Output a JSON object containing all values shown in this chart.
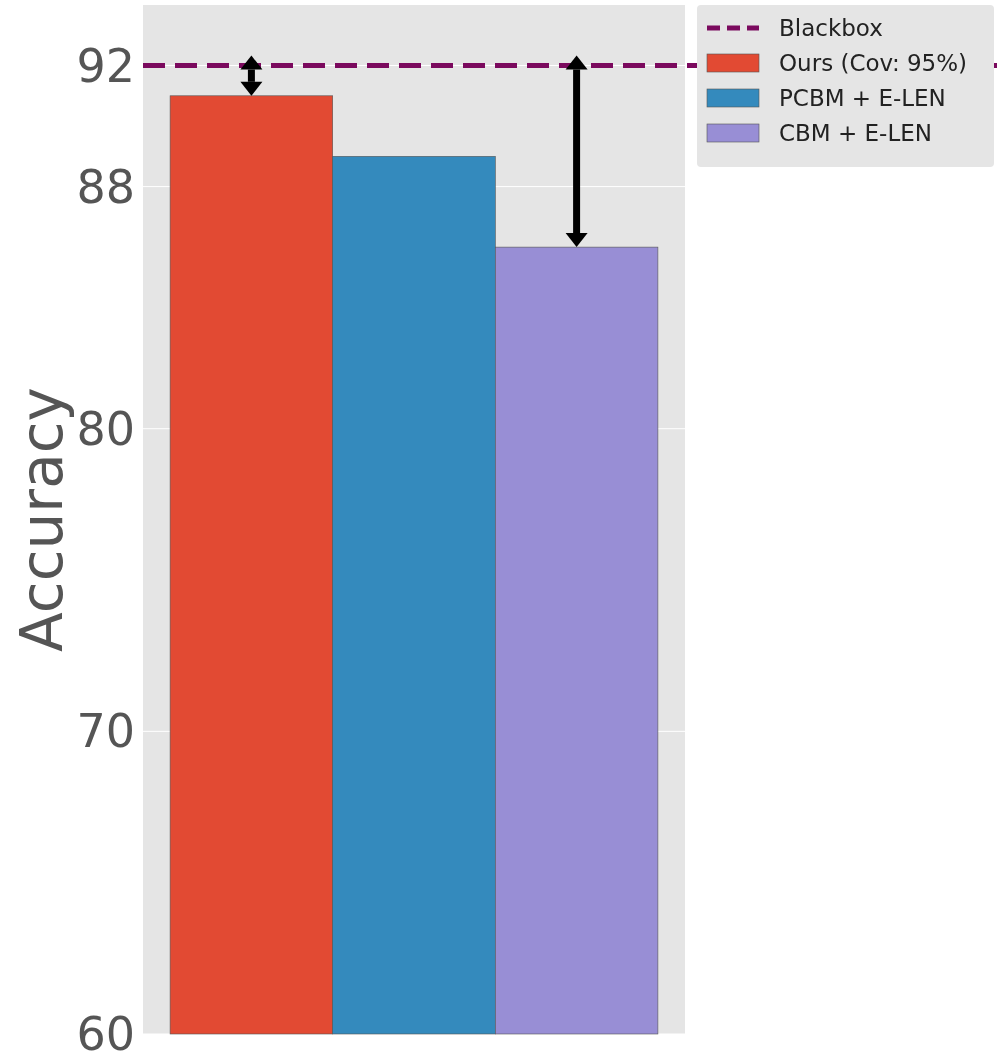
{
  "chart_data": {
    "type": "bar",
    "ylabel": "Accuracy",
    "categories": [
      null
    ],
    "series": [
      {
        "name": "Ours (Cov: 95%)",
        "color": "#e24a33",
        "values": [
          91
        ]
      },
      {
        "name": "PCBM + E-LEN",
        "color": "#348abd",
        "values": [
          89
        ]
      },
      {
        "name": "CBM + E-LEN",
        "color": "#988ed5",
        "values": [
          86
        ]
      }
    ],
    "ylim": [
      60,
      94
    ],
    "yticks": [
      60,
      70,
      80,
      88,
      92
    ],
    "grid": "y",
    "tick_labels": "y",
    "legend": "top right",
    "ref_lines": [
      {
        "axis": "y",
        "value": 92,
        "label": "Blackbox",
        "color": "#7b0a5e",
        "line_style": "dashed"
      }
    ]
  }
}
